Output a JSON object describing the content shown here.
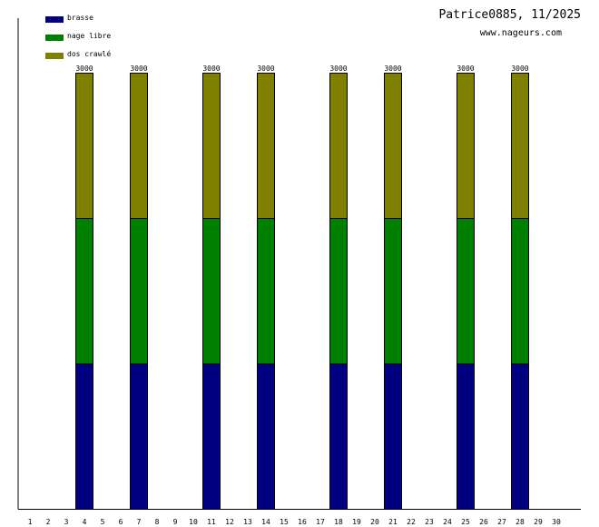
{
  "title": "Patrice0885, 11/2025",
  "subtitle": "www.nageurs.com",
  "colors": {
    "brasse": "#000080",
    "nage_libre": "#008000",
    "dos_crawle": "#808000",
    "axis": "#000000",
    "background": "#ffffff"
  },
  "chart_data": {
    "type": "bar",
    "stacked": true,
    "title": "Patrice0885, 11/2025",
    "subtitle": "www.nageurs.com",
    "x_tick_labels": [
      "1",
      "2",
      "3",
      "4",
      "5",
      "6",
      "7",
      "8",
      "9",
      "10",
      "11",
      "12",
      "13",
      "14",
      "15",
      "16",
      "17",
      "18",
      "19",
      "20",
      "21",
      "22",
      "23",
      "24",
      "25",
      "26",
      "27",
      "28",
      "29",
      "30"
    ],
    "categories": [
      "4",
      "7",
      "11",
      "14",
      "18",
      "21",
      "25",
      "28"
    ],
    "series": [
      {
        "name": "brasse",
        "color": "#000080",
        "values": [
          1000,
          1000,
          1000,
          1000,
          1000,
          1000,
          1000,
          1000
        ]
      },
      {
        "name": "nage libre",
        "color": "#008000",
        "values": [
          1000,
          1000,
          1000,
          1000,
          1000,
          1000,
          1000,
          1000
        ]
      },
      {
        "name": "dos crawlé",
        "color": "#808000",
        "values": [
          1000,
          1000,
          1000,
          1000,
          1000,
          1000,
          1000,
          1000
        ]
      }
    ],
    "totals": [
      "3000",
      "3000",
      "3000",
      "3000",
      "3000",
      "3000",
      "3000",
      "3000"
    ],
    "ylim": [
      0,
      3000
    ],
    "grid": false,
    "legend_position": "top-left"
  }
}
